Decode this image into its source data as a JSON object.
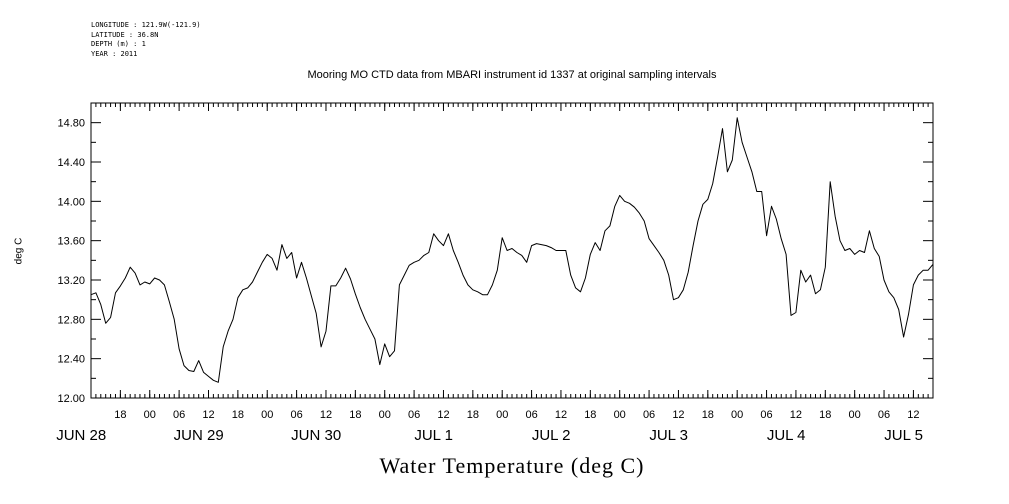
{
  "chart_data": {
    "type": "line",
    "title": "Mooring MO CTD data from MBARI instrument id 1337 at original sampling intervals",
    "metadata_lines": [
      "LONGITUDE : 121.9W(-121.9)",
      "LATITUDE : 36.8N",
      "DEPTH (m) : 1",
      "YEAR : 2011"
    ],
    "xlabel": "Water Temperature (deg C)",
    "ylabel": "deg C",
    "ylim": [
      12.0,
      15.0
    ],
    "yticks": [
      12.0,
      12.4,
      12.8,
      13.2,
      13.6,
      14.0,
      14.4,
      14.8
    ],
    "ytick_labels": [
      "12.00",
      "12.40",
      "12.80",
      "13.20",
      "13.60",
      "14.00",
      "14.40",
      "14.80"
    ],
    "xlim": [
      "2011-06-28T12:00",
      "2011-07-05T16:00"
    ],
    "hour_ticks": [
      {
        "t": "2011-06-28T18:00",
        "label": "18"
      },
      {
        "t": "2011-06-29T00:00",
        "label": "00"
      },
      {
        "t": "2011-06-29T06:00",
        "label": "06"
      },
      {
        "t": "2011-06-29T12:00",
        "label": "12"
      },
      {
        "t": "2011-06-29T18:00",
        "label": "18"
      },
      {
        "t": "2011-06-30T00:00",
        "label": "00"
      },
      {
        "t": "2011-06-30T06:00",
        "label": "06"
      },
      {
        "t": "2011-06-30T12:00",
        "label": "12"
      },
      {
        "t": "2011-06-30T18:00",
        "label": "18"
      },
      {
        "t": "2011-07-01T00:00",
        "label": "00"
      },
      {
        "t": "2011-07-01T06:00",
        "label": "06"
      },
      {
        "t": "2011-07-01T12:00",
        "label": "12"
      },
      {
        "t": "2011-07-01T18:00",
        "label": "18"
      },
      {
        "t": "2011-07-02T00:00",
        "label": "00"
      },
      {
        "t": "2011-07-02T06:00",
        "label": "06"
      },
      {
        "t": "2011-07-02T12:00",
        "label": "12"
      },
      {
        "t": "2011-07-02T18:00",
        "label": "18"
      },
      {
        "t": "2011-07-03T00:00",
        "label": "00"
      },
      {
        "t": "2011-07-03T06:00",
        "label": "06"
      },
      {
        "t": "2011-07-03T12:00",
        "label": "12"
      },
      {
        "t": "2011-07-03T18:00",
        "label": "18"
      },
      {
        "t": "2011-07-04T00:00",
        "label": "00"
      },
      {
        "t": "2011-07-04T06:00",
        "label": "06"
      },
      {
        "t": "2011-07-04T12:00",
        "label": "12"
      },
      {
        "t": "2011-07-04T18:00",
        "label": "18"
      },
      {
        "t": "2011-07-05T00:00",
        "label": "00"
      },
      {
        "t": "2011-07-05T06:00",
        "label": "06"
      },
      {
        "t": "2011-07-05T12:00",
        "label": "12"
      }
    ],
    "day_labels": [
      {
        "t": "2011-06-28T10:00",
        "label": "JUN 28"
      },
      {
        "t": "2011-06-29T10:00",
        "label": "JUN 29"
      },
      {
        "t": "2011-06-30T10:00",
        "label": "JUN 30"
      },
      {
        "t": "2011-07-01T10:00",
        "label": "JUL  1"
      },
      {
        "t": "2011-07-02T10:00",
        "label": "JUL  2"
      },
      {
        "t": "2011-07-03T10:00",
        "label": "JUL  3"
      },
      {
        "t": "2011-07-04T10:00",
        "label": "JUL  4"
      },
      {
        "t": "2011-07-05T10:00",
        "label": "JUL  5"
      }
    ],
    "series": [
      {
        "color": "#000000",
        "points": [
          [
            "2011-06-28T12:00",
            13.05
          ],
          [
            "2011-06-28T13:00",
            13.07
          ],
          [
            "2011-06-28T14:00",
            12.95
          ],
          [
            "2011-06-28T15:00",
            12.76
          ],
          [
            "2011-06-28T16:00",
            12.82
          ],
          [
            "2011-06-28T17:00",
            13.07
          ],
          [
            "2011-06-28T18:00",
            13.14
          ],
          [
            "2011-06-28T19:00",
            13.22
          ],
          [
            "2011-06-28T20:00",
            13.33
          ],
          [
            "2011-06-28T21:00",
            13.27
          ],
          [
            "2011-06-28T22:00",
            13.15
          ],
          [
            "2011-06-28T23:00",
            13.18
          ],
          [
            "2011-06-29T00:00",
            13.16
          ],
          [
            "2011-06-29T01:00",
            13.22
          ],
          [
            "2011-06-29T02:00",
            13.2
          ],
          [
            "2011-06-29T03:00",
            13.15
          ],
          [
            "2011-06-29T04:00",
            12.98
          ],
          [
            "2011-06-29T05:00",
            12.8
          ],
          [
            "2011-06-29T06:00",
            12.5
          ],
          [
            "2011-06-29T07:00",
            12.33
          ],
          [
            "2011-06-29T08:00",
            12.28
          ],
          [
            "2011-06-29T09:00",
            12.27
          ],
          [
            "2011-06-29T10:00",
            12.38
          ],
          [
            "2011-06-29T11:00",
            12.26
          ],
          [
            "2011-06-29T12:00",
            12.22
          ],
          [
            "2011-06-29T13:00",
            12.18
          ],
          [
            "2011-06-29T14:00",
            12.16
          ],
          [
            "2011-06-29T15:00",
            12.52
          ],
          [
            "2011-06-29T16:00",
            12.68
          ],
          [
            "2011-06-29T17:00",
            12.8
          ],
          [
            "2011-06-29T18:00",
            13.02
          ],
          [
            "2011-06-29T19:00",
            13.1
          ],
          [
            "2011-06-29T20:00",
            13.12
          ],
          [
            "2011-06-29T21:00",
            13.18
          ],
          [
            "2011-06-29T22:00",
            13.28
          ],
          [
            "2011-06-29T23:00",
            13.38
          ],
          [
            "2011-06-30T00:00",
            13.46
          ],
          [
            "2011-06-30T01:00",
            13.42
          ],
          [
            "2011-06-30T02:00",
            13.3
          ],
          [
            "2011-06-30T03:00",
            13.56
          ],
          [
            "2011-06-30T04:00",
            13.42
          ],
          [
            "2011-06-30T05:00",
            13.48
          ],
          [
            "2011-06-30T06:00",
            13.22
          ],
          [
            "2011-06-30T07:00",
            13.38
          ],
          [
            "2011-06-30T08:00",
            13.22
          ],
          [
            "2011-06-30T09:00",
            13.04
          ],
          [
            "2011-06-30T10:00",
            12.86
          ],
          [
            "2011-06-30T11:00",
            12.52
          ],
          [
            "2011-06-30T12:00",
            12.68
          ],
          [
            "2011-06-30T13:00",
            13.14
          ],
          [
            "2011-06-30T14:00",
            13.14
          ],
          [
            "2011-06-30T15:00",
            13.22
          ],
          [
            "2011-06-30T16:00",
            13.32
          ],
          [
            "2011-06-30T17:00",
            13.21
          ],
          [
            "2011-06-30T18:00",
            13.06
          ],
          [
            "2011-06-30T19:00",
            12.92
          ],
          [
            "2011-06-30T20:00",
            12.8
          ],
          [
            "2011-06-30T21:00",
            12.7
          ],
          [
            "2011-06-30T22:00",
            12.6
          ],
          [
            "2011-06-30T23:00",
            12.34
          ],
          [
            "2011-07-01T00:00",
            12.55
          ],
          [
            "2011-07-01T01:00",
            12.42
          ],
          [
            "2011-07-01T02:00",
            12.48
          ],
          [
            "2011-07-01T03:00",
            13.15
          ],
          [
            "2011-07-01T04:00",
            13.25
          ],
          [
            "2011-07-01T05:00",
            13.35
          ],
          [
            "2011-07-01T06:00",
            13.38
          ],
          [
            "2011-07-01T07:00",
            13.4
          ],
          [
            "2011-07-01T08:00",
            13.45
          ],
          [
            "2011-07-01T09:00",
            13.48
          ],
          [
            "2011-07-01T10:00",
            13.67
          ],
          [
            "2011-07-01T11:00",
            13.6
          ],
          [
            "2011-07-01T12:00",
            13.55
          ],
          [
            "2011-07-01T13:00",
            13.67
          ],
          [
            "2011-07-01T14:00",
            13.5
          ],
          [
            "2011-07-01T15:00",
            13.38
          ],
          [
            "2011-07-01T16:00",
            13.25
          ],
          [
            "2011-07-01T17:00",
            13.15
          ],
          [
            "2011-07-01T18:00",
            13.1
          ],
          [
            "2011-07-01T19:00",
            13.08
          ],
          [
            "2011-07-01T20:00",
            13.05
          ],
          [
            "2011-07-01T21:00",
            13.05
          ],
          [
            "2011-07-01T22:00",
            13.15
          ],
          [
            "2011-07-01T23:00",
            13.3
          ],
          [
            "2011-07-02T00:00",
            13.63
          ],
          [
            "2011-07-02T01:00",
            13.5
          ],
          [
            "2011-07-02T02:00",
            13.52
          ],
          [
            "2011-07-02T03:00",
            13.48
          ],
          [
            "2011-07-02T04:00",
            13.45
          ],
          [
            "2011-07-02T05:00",
            13.38
          ],
          [
            "2011-07-02T06:00",
            13.55
          ],
          [
            "2011-07-02T07:00",
            13.57
          ],
          [
            "2011-07-02T08:00",
            13.56
          ],
          [
            "2011-07-02T09:00",
            13.55
          ],
          [
            "2011-07-02T10:00",
            13.53
          ],
          [
            "2011-07-02T11:00",
            13.5
          ],
          [
            "2011-07-02T12:00",
            13.5
          ],
          [
            "2011-07-02T13:00",
            13.5
          ],
          [
            "2011-07-02T14:00",
            13.25
          ],
          [
            "2011-07-02T15:00",
            13.12
          ],
          [
            "2011-07-02T16:00",
            13.08
          ],
          [
            "2011-07-02T17:00",
            13.22
          ],
          [
            "2011-07-02T18:00",
            13.46
          ],
          [
            "2011-07-02T19:00",
            13.58
          ],
          [
            "2011-07-02T20:00",
            13.5
          ],
          [
            "2011-07-02T21:00",
            13.7
          ],
          [
            "2011-07-02T22:00",
            13.75
          ],
          [
            "2011-07-02T23:00",
            13.95
          ],
          [
            "2011-07-03T00:00",
            14.06
          ],
          [
            "2011-07-03T01:00",
            14.0
          ],
          [
            "2011-07-03T02:00",
            13.98
          ],
          [
            "2011-07-03T03:00",
            13.94
          ],
          [
            "2011-07-03T04:00",
            13.88
          ],
          [
            "2011-07-03T05:00",
            13.8
          ],
          [
            "2011-07-03T06:00",
            13.62
          ],
          [
            "2011-07-03T07:00",
            13.55
          ],
          [
            "2011-07-03T08:00",
            13.48
          ],
          [
            "2011-07-03T09:00",
            13.4
          ],
          [
            "2011-07-03T10:00",
            13.25
          ],
          [
            "2011-07-03T11:00",
            13.0
          ],
          [
            "2011-07-03T12:00",
            13.02
          ],
          [
            "2011-07-03T13:00",
            13.1
          ],
          [
            "2011-07-03T14:00",
            13.28
          ],
          [
            "2011-07-03T15:00",
            13.55
          ],
          [
            "2011-07-03T16:00",
            13.8
          ],
          [
            "2011-07-03T17:00",
            13.97
          ],
          [
            "2011-07-03T18:00",
            14.02
          ],
          [
            "2011-07-03T19:00",
            14.18
          ],
          [
            "2011-07-03T20:00",
            14.45
          ],
          [
            "2011-07-03T21:00",
            14.74
          ],
          [
            "2011-07-03T22:00",
            14.3
          ],
          [
            "2011-07-03T23:00",
            14.42
          ],
          [
            "2011-07-04T00:00",
            14.85
          ],
          [
            "2011-07-04T01:00",
            14.6
          ],
          [
            "2011-07-04T02:00",
            14.45
          ],
          [
            "2011-07-04T03:00",
            14.3
          ],
          [
            "2011-07-04T04:00",
            14.1
          ],
          [
            "2011-07-04T05:00",
            14.1
          ],
          [
            "2011-07-04T06:00",
            13.65
          ],
          [
            "2011-07-04T07:00",
            13.95
          ],
          [
            "2011-07-04T08:00",
            13.82
          ],
          [
            "2011-07-04T09:00",
            13.62
          ],
          [
            "2011-07-04T10:00",
            13.46
          ],
          [
            "2011-07-04T11:00",
            12.84
          ],
          [
            "2011-07-04T12:00",
            12.87
          ],
          [
            "2011-07-04T13:00",
            13.3
          ],
          [
            "2011-07-04T14:00",
            13.18
          ],
          [
            "2011-07-04T15:00",
            13.25
          ],
          [
            "2011-07-04T16:00",
            13.06
          ],
          [
            "2011-07-04T17:00",
            13.1
          ],
          [
            "2011-07-04T18:00",
            13.33
          ],
          [
            "2011-07-04T19:00",
            14.2
          ],
          [
            "2011-07-04T20:00",
            13.85
          ],
          [
            "2011-07-04T21:00",
            13.6
          ],
          [
            "2011-07-04T22:00",
            13.5
          ],
          [
            "2011-07-04T23:00",
            13.52
          ],
          [
            "2011-07-05T00:00",
            13.46
          ],
          [
            "2011-07-05T01:00",
            13.5
          ],
          [
            "2011-07-05T02:00",
            13.48
          ],
          [
            "2011-07-05T03:00",
            13.7
          ],
          [
            "2011-07-05T04:00",
            13.52
          ],
          [
            "2011-07-05T05:00",
            13.44
          ],
          [
            "2011-07-05T06:00",
            13.2
          ],
          [
            "2011-07-05T07:00",
            13.08
          ],
          [
            "2011-07-05T08:00",
            13.02
          ],
          [
            "2011-07-05T09:00",
            12.9
          ],
          [
            "2011-07-05T10:00",
            12.62
          ],
          [
            "2011-07-05T11:00",
            12.85
          ],
          [
            "2011-07-05T12:00",
            13.15
          ],
          [
            "2011-07-05T13:00",
            13.25
          ],
          [
            "2011-07-05T14:00",
            13.3
          ],
          [
            "2011-07-05T15:00",
            13.3
          ],
          [
            "2011-07-05T16:00",
            13.36
          ]
        ]
      }
    ]
  }
}
